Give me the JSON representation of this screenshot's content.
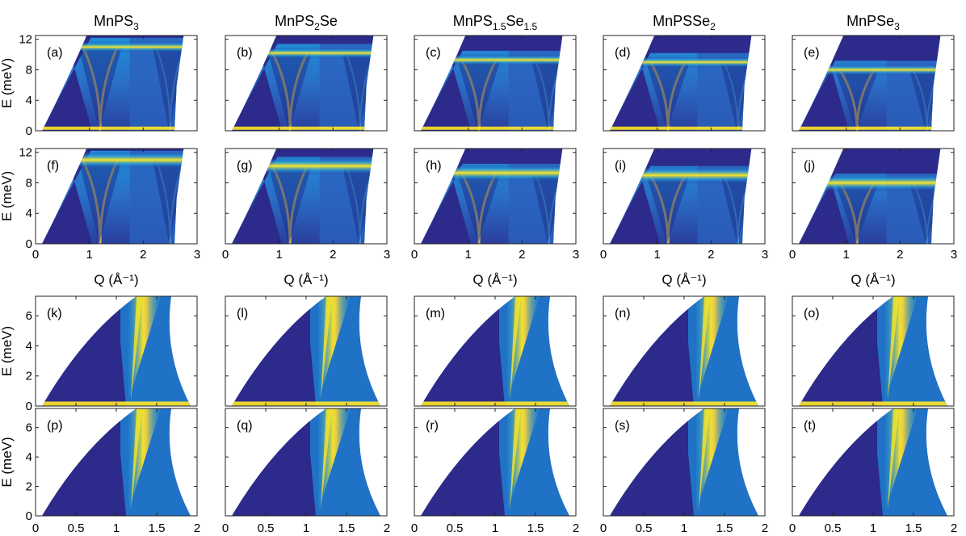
{
  "chart_data": {
    "type": "heatmap",
    "columns": [
      {
        "title": [
          "MnPS",
          {
            "sub": "3"
          }
        ]
      },
      {
        "title": [
          "MnPS",
          {
            "sub": "2"
          },
          "Se"
        ]
      },
      {
        "title": [
          "MnPS",
          {
            "sub": "1.5"
          },
          "Se",
          {
            "sub": "1.5"
          }
        ]
      },
      {
        "title": [
          "MnPSSe",
          {
            "sub": "2"
          }
        ]
      },
      {
        "title": [
          "MnPSe",
          {
            "sub": "3"
          }
        ]
      }
    ],
    "panel_labels": [
      [
        "(a)",
        "(b)",
        "(c)",
        "(d)",
        "(e)"
      ],
      [
        "(f)",
        "(g)",
        "(h)",
        "(i)",
        "(j)"
      ],
      [
        "(k)",
        "(l)",
        "(m)",
        "(n)",
        "(o)"
      ],
      [
        "(p)",
        "(q)",
        "(r)",
        "(s)",
        "(t)"
      ]
    ],
    "ylabel": "E (meV)",
    "xlabel_top": "Q (Å⁻¹)",
    "top_rows": {
      "xlim": [
        0,
        3
      ],
      "ylim": [
        0,
        12.5
      ],
      "xticks": [
        0,
        1,
        2,
        3
      ],
      "yticks": [
        0,
        4,
        8,
        12
      ],
      "band_energy_meV": [
        11.0,
        10.2,
        9.3,
        9.0,
        8.0
      ],
      "minima_Q": [
        1.2,
        2.5
      ]
    },
    "bottom_rows": {
      "xlim": [
        0,
        2
      ],
      "ylim": [
        0,
        7.3
      ],
      "xticks": [
        0,
        0.5,
        1,
        1.5,
        2
      ],
      "xtick_labels": [
        "0",
        "0.5",
        "1",
        "1.5",
        "2"
      ],
      "yticks": [
        0,
        2,
        4,
        6
      ],
      "cone_Q": 1.2
    },
    "colors": {
      "low": "#2c2a8a",
      "mid": "#1f9fe0",
      "high": "#fde725"
    }
  }
}
